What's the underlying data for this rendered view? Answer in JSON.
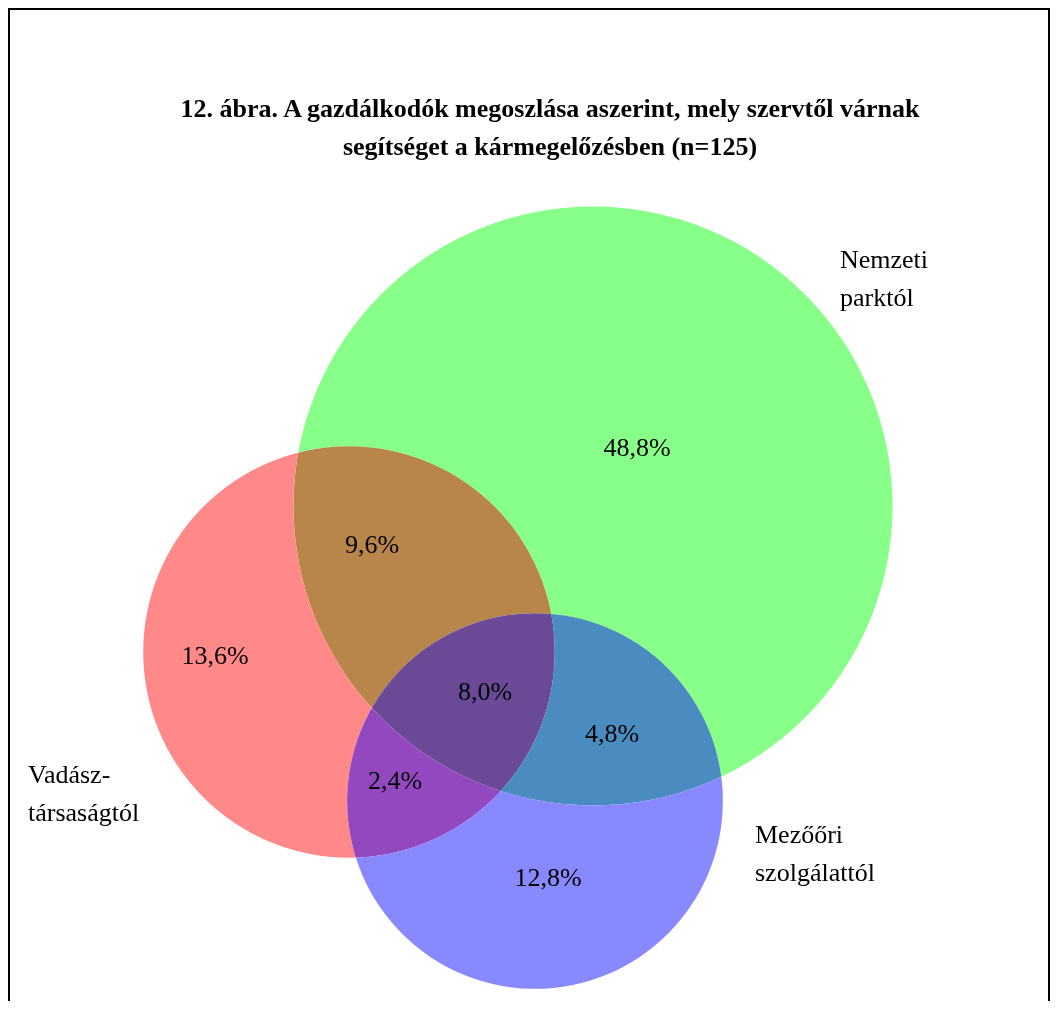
{
  "chart_data": {
    "type": "other",
    "title": "12. ábra. A gazdálkodók megoszlása aszerint, mely szervtől várnak segítséget a kármegelőzésben (n=125)",
    "categories": [
      null,
      null,
      null,
      null,
      null,
      null,
      null
    ],
    "values": [
      48.8,
      9.6,
      13.6,
      8.0,
      4.8,
      2.4,
      12.8
    ],
    "value_labels": [
      "48,8%",
      "9,6%",
      "13,6%",
      "8,0%",
      "4,8%",
      "2,4%",
      "12,8%"
    ],
    "colors": [
      "#88ff88",
      "#b8864a",
      "#ff8888",
      "#6a4a96",
      "#4a8cc0",
      "#9448c0",
      "#8888ff"
    ],
    "annotations": [
      "Nemzeti\nparktól",
      "Vadász-\ntársaságtól",
      "Mezőőri\nszolgálattól"
    ]
  }
}
